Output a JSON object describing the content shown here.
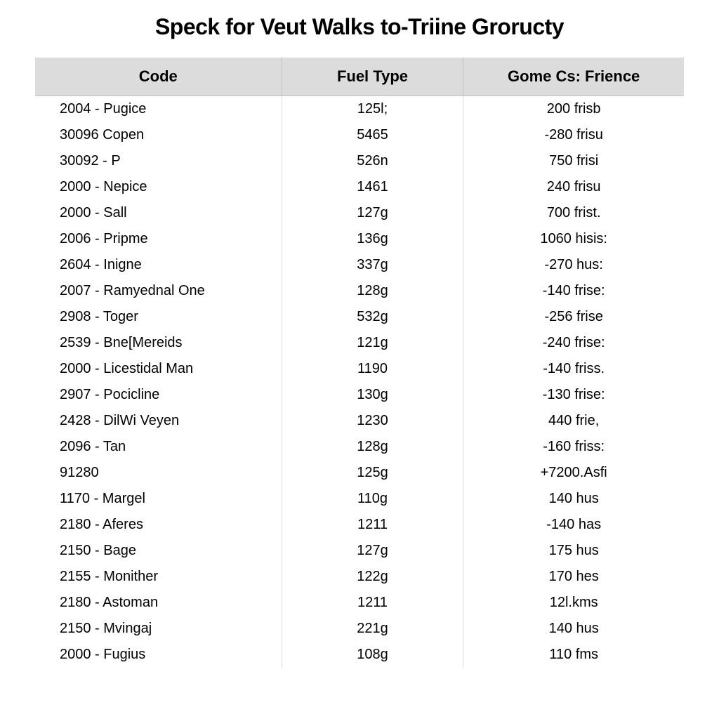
{
  "title": "Speck for Veut Walks to-Triine Groructy",
  "table": {
    "columns": [
      {
        "label": "Code",
        "align": "left",
        "width_pct": 38
      },
      {
        "label": "Fuel Type",
        "align": "center",
        "width_pct": 28
      },
      {
        "label": "Gome Cs: Frience",
        "align": "center",
        "width_pct": 34
      }
    ],
    "rows": [
      {
        "code": "2004 - Pugice",
        "fuel": "125l;",
        "gome": "200 frisb"
      },
      {
        "code": "30096 Copen",
        "fuel": "5465",
        "gome": "-280 frisu"
      },
      {
        "code": "30092 - P",
        "fuel": "526n",
        "gome": "750 frisi"
      },
      {
        "code": "2000 - Nepice",
        "fuel": "1461",
        "gome": "240 frisu"
      },
      {
        "code": "2000 - Sall",
        "fuel": "127g",
        "gome": "700 frist."
      },
      {
        "code": "2006 - Pripme",
        "fuel": "136g",
        "gome": "1060 hisis:"
      },
      {
        "code": "2604 - Inigne",
        "fuel": "337g",
        "gome": "-270 hus:"
      },
      {
        "code": "2007 - Ramyednal One",
        "fuel": "128g",
        "gome": "-140 frise:"
      },
      {
        "code": "2908 - Toger",
        "fuel": "532g",
        "gome": "-256 frise"
      },
      {
        "code": "2539 - Bne[Mereids",
        "fuel": "121g",
        "gome": "-240 frise:"
      },
      {
        "code": "2000 - Licestidal Man",
        "fuel": "1190",
        "gome": "-140 friss."
      },
      {
        "code": "2907 - Pocicline",
        "fuel": "130g",
        "gome": "-130 frise:"
      },
      {
        "code": "2428 - DilWi Veyen",
        "fuel": "1230",
        "gome": "440 frie,"
      },
      {
        "code": "2096 - Tan",
        "fuel": "128g",
        "gome": "-160 friss:"
      },
      {
        "code": "91280",
        "fuel": "125g",
        "gome": "+7200.Asfi"
      },
      {
        "code": "1170 - Margel",
        "fuel": "110g",
        "gome": "140 hus"
      },
      {
        "code": "2180 - Aferes",
        "fuel": "1211",
        "gome": "-140 has"
      },
      {
        "code": "2150 - Bage",
        "fuel": "127g",
        "gome": "175 hus"
      },
      {
        "code": "2155 - Monither",
        "fuel": "122g",
        "gome": "170 hes"
      },
      {
        "code": "2180 - Astoman",
        "fuel": "1211",
        "gome": "12l.kms"
      },
      {
        "code": "2150 - Mvingaj",
        "fuel": "221g",
        "gome": "140 hus"
      },
      {
        "code": "2000 - Fugius",
        "fuel": "108g",
        "gome": "110 fms"
      }
    ],
    "header_bg": "#dcdcdc",
    "header_fontsize": 22,
    "cell_fontsize": 20,
    "border_color": "#c0c0c0",
    "divider_color": "#d8d8d8",
    "background_color": "#ffffff"
  },
  "typography": {
    "title_fontsize": 32,
    "title_weight": "bold",
    "font_family": "Arial"
  }
}
